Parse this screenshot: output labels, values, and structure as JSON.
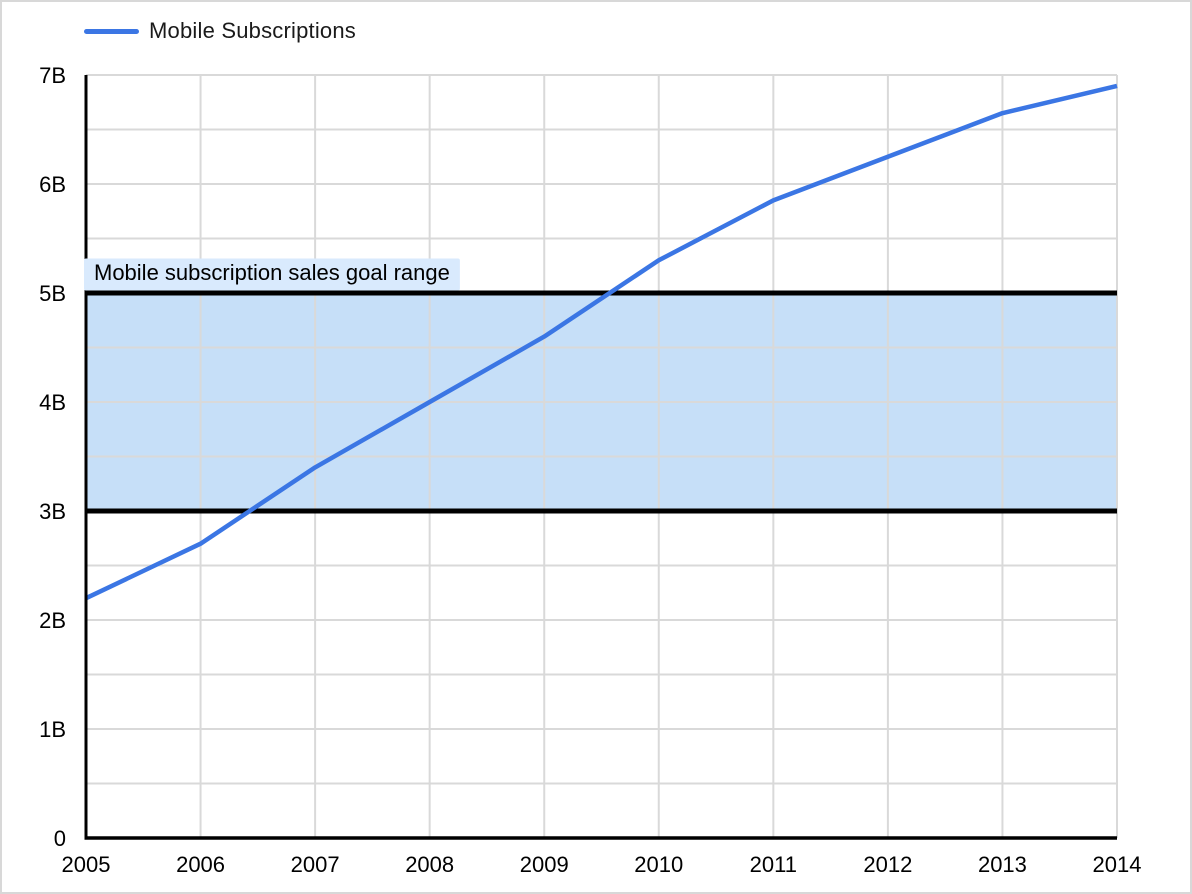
{
  "legend": {
    "series_label": "Mobile Subscriptions",
    "position": "top-left"
  },
  "annotation": {
    "label": "Mobile subscription sales goal range"
  },
  "colors": {
    "line": "#3b76e4",
    "band_fill": "#c6dff8",
    "band_border": "#000000",
    "annotation_bg": "#d9eafd",
    "gridline": "#d9d9d9",
    "axis": "#000000",
    "text": "#000000"
  },
  "chart_data": {
    "type": "line",
    "title": "",
    "xlabel": "",
    "ylabel": "",
    "x": [
      2005,
      2006,
      2007,
      2008,
      2009,
      2010,
      2011,
      2012,
      2013,
      2014
    ],
    "x_tick_labels": [
      "2005",
      "2006",
      "2007",
      "2008",
      "2009",
      "2010",
      "2011",
      "2012",
      "2013",
      "2014"
    ],
    "series": [
      {
        "name": "Mobile Subscriptions",
        "unit": "billions",
        "values": [
          2.2,
          2.7,
          3.4,
          4.0,
          4.6,
          5.3,
          5.85,
          6.25,
          6.65,
          6.9
        ]
      }
    ],
    "xlim": [
      2005,
      2014
    ],
    "ylim": [
      0,
      7
    ],
    "y_tick_values": [
      0,
      1,
      2,
      3,
      4,
      5,
      6,
      7
    ],
    "y_tick_labels": [
      "0",
      "1B",
      "2B",
      "3B",
      "4B",
      "5B",
      "6B",
      "7B"
    ],
    "grid": {
      "horizontal_step": 0.5,
      "vertical_at_each_year": true
    },
    "band": {
      "from": 3,
      "to": 5,
      "label": "Mobile subscription sales goal range"
    },
    "legend_position": "top-left"
  }
}
